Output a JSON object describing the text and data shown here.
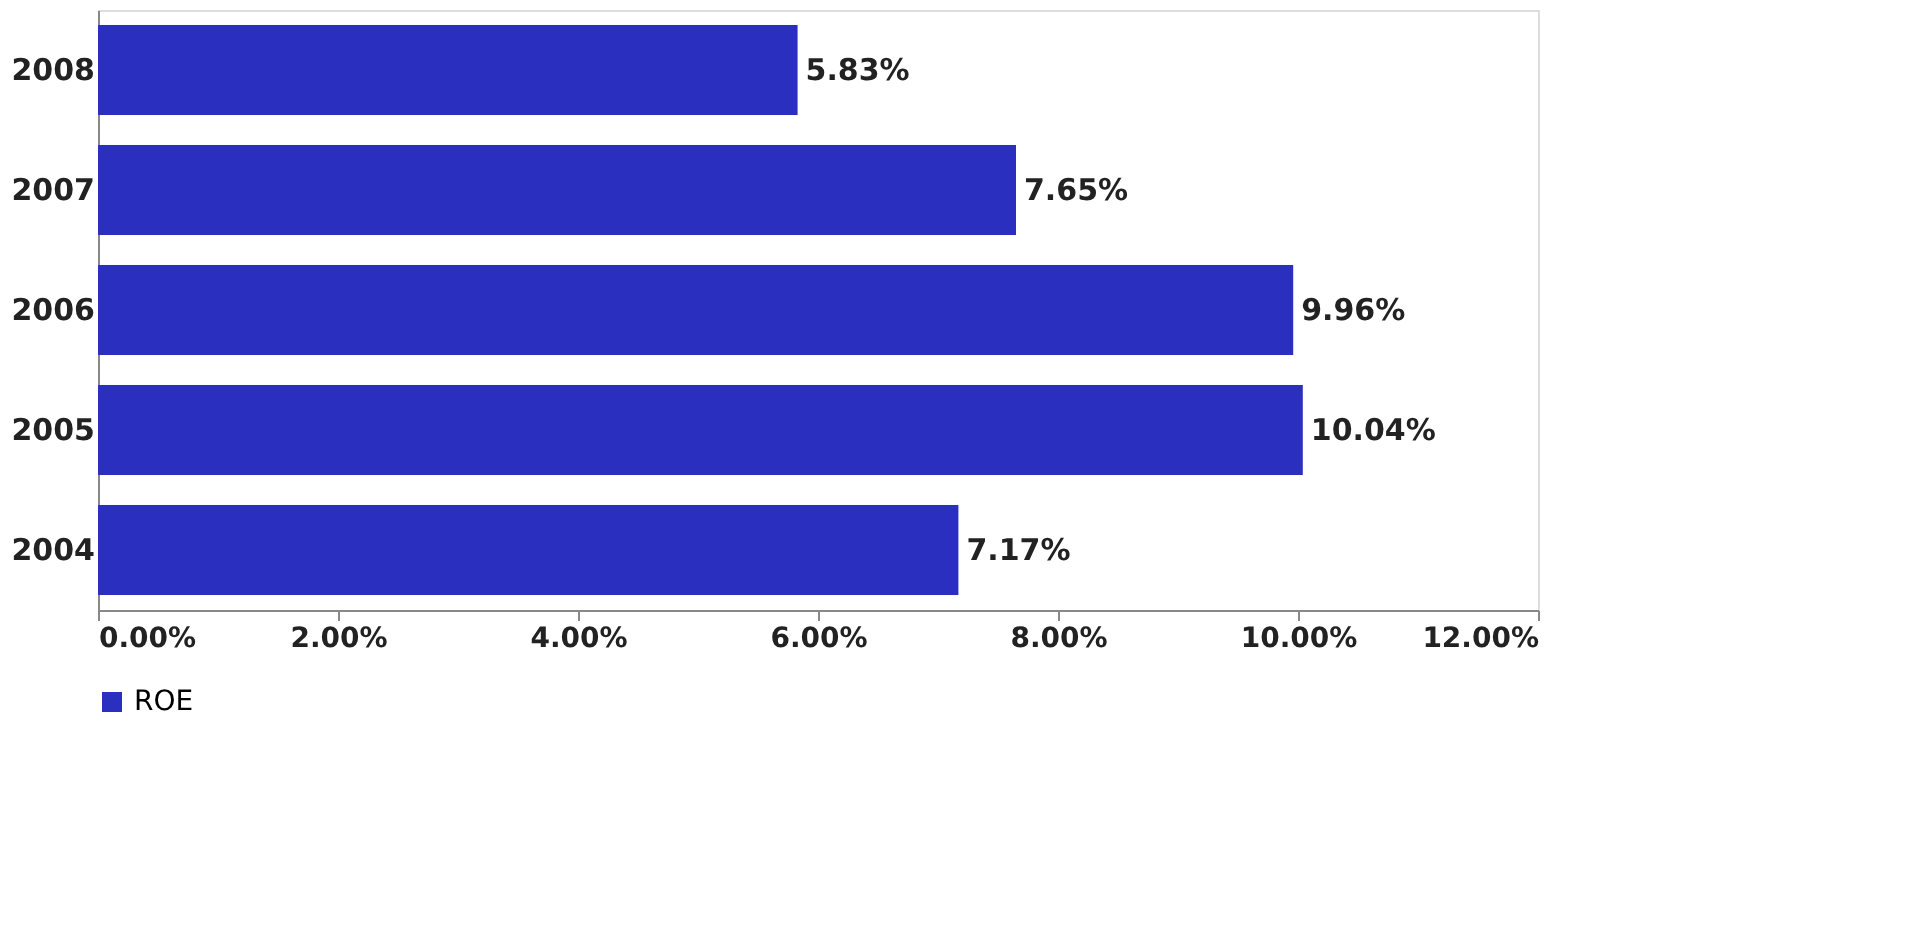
{
  "chart_data": {
    "type": "bar",
    "orientation": "horizontal",
    "categories": [
      "2008",
      "2007",
      "2006",
      "2005",
      "2004"
    ],
    "series": [
      {
        "name": "ROE",
        "color": "#2b2fc0",
        "values": [
          5.83,
          7.65,
          9.96,
          10.04,
          7.17
        ],
        "value_labels": [
          "5.83%",
          "7.65%",
          "9.96%",
          "10.04%",
          "7.17%"
        ]
      }
    ],
    "xlim": [
      0,
      12
    ],
    "xticks": [
      {
        "value": 0,
        "label": "0.00%"
      },
      {
        "value": 2,
        "label": "2.00%"
      },
      {
        "value": 4,
        "label": "4.00%"
      },
      {
        "value": 6,
        "label": "6.00%"
      },
      {
        "value": 8,
        "label": "8.00%"
      },
      {
        "value": 10,
        "label": "10.00%"
      },
      {
        "value": 12,
        "label": "12.00%"
      }
    ],
    "grid": false,
    "legend": "bottom"
  }
}
